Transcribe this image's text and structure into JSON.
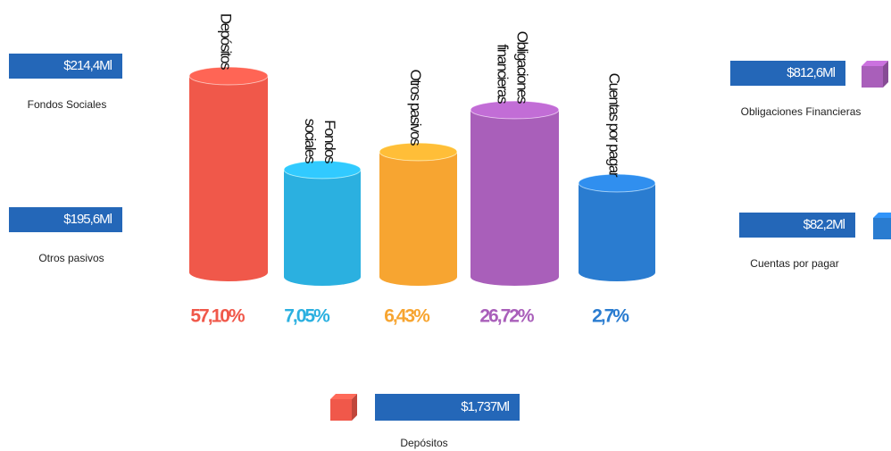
{
  "bars": [
    {
      "label": "Depósitos",
      "percent": "57,10%",
      "color": "#f0584a"
    },
    {
      "label": "Fondos sociales",
      "percent": "7,05%",
      "color": "#2bb0e0"
    },
    {
      "label": "Otros pasivos",
      "percent": "6,43%",
      "color": "#f7a531"
    },
    {
      "label": "Obligaciones financieras",
      "percent": "26,72%",
      "color": "#a95fba"
    },
    {
      "label": "Cuentas por pagar",
      "percent": "2,7%",
      "color": "#2a7cd0"
    }
  ],
  "callouts": [
    {
      "amount": "$214,4Ml",
      "label": "Fondos Sociales"
    },
    {
      "amount": "$195,6Ml",
      "label": "Otros pasivos"
    },
    {
      "amount": "$812,6Ml",
      "label": "Obligaciones Financieras"
    },
    {
      "amount": "$82,2Ml",
      "label": "Cuentas por pagar"
    },
    {
      "amount": "$1,737Ml",
      "label": "Depósitos"
    }
  ]
}
